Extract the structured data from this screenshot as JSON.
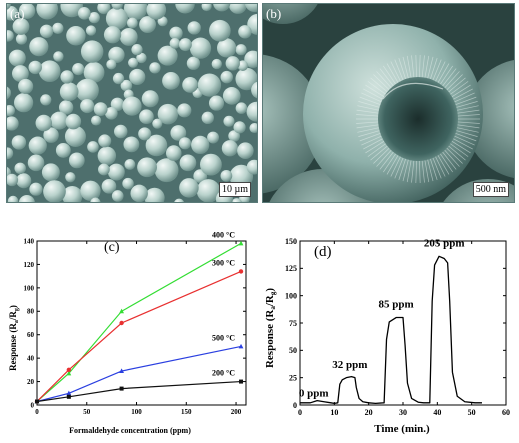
{
  "panel_a": {
    "label": "(a)",
    "scale_bar": "10 µm"
  },
  "panel_b": {
    "label": "(b)",
    "scale_bar": "500 nm"
  },
  "chart_data": [
    {
      "type": "line",
      "label": "(c)",
      "xlabel": "Formaldehyde concentration (ppm)",
      "ylabel": "Response (R_a/R_g)",
      "ylabel_main": "Response (R",
      "ylabel_sub1": "a",
      "ylabel_mid": "/R",
      "ylabel_sub2": "g",
      "ylabel_end": ")",
      "xlim": [
        0,
        210
      ],
      "ylim": [
        0,
        140
      ],
      "xticks": [
        0,
        50,
        100,
        150,
        200
      ],
      "yticks": [
        0,
        20,
        40,
        60,
        80,
        100,
        120,
        140
      ],
      "x": [
        0,
        32,
        85,
        205
      ],
      "series": [
        {
          "name": "400 °C",
          "color": "#33dd33",
          "marker": "triangle",
          "values": [
            3,
            27,
            80,
            138
          ]
        },
        {
          "name": "300 °C",
          "color": "#e83030",
          "marker": "circle",
          "values": [
            3,
            30,
            70,
            114
          ]
        },
        {
          "name": "500 °C",
          "color": "#2a3fe0",
          "marker": "triangle",
          "values": [
            3,
            10,
            29,
            50
          ]
        },
        {
          "name": "200 °C",
          "color": "#111111",
          "marker": "square",
          "values": [
            3,
            7,
            14,
            20
          ]
        }
      ]
    },
    {
      "type": "line",
      "label": "(d)",
      "xlabel": "Time (min.)",
      "ylabel": "Response (R_a/R_g)",
      "ylabel_main": "Response (R",
      "ylabel_sub1": "a",
      "ylabel_mid": "/R",
      "ylabel_sub2": "g",
      "ylabel_end": ")",
      "xlim": [
        0,
        60
      ],
      "ylim": [
        0,
        150
      ],
      "xticks": [
        0,
        10,
        20,
        30,
        40,
        50,
        60
      ],
      "yticks": [
        0,
        25,
        50,
        75,
        100,
        125,
        150
      ],
      "annotations": [
        {
          "text": "0 ppm",
          "x": 4,
          "y": 8
        },
        {
          "text": "32 ppm",
          "x": 14.5,
          "y": 34
        },
        {
          "text": "85 ppm",
          "x": 28,
          "y": 89
        },
        {
          "text": "205 ppm",
          "x": 42,
          "y": 145
        }
      ],
      "series": [
        {
          "color": "#000000",
          "x": [
            0,
            3,
            5,
            7,
            9,
            10,
            11,
            11.6,
            12.3,
            13.5,
            15,
            16,
            16.4,
            17.2,
            18.3,
            20,
            22,
            24.5,
            25.2,
            26,
            28,
            30,
            30.6,
            31.3,
            32.5,
            34.5,
            36,
            37.8,
            38.5,
            39.2,
            40.5,
            42,
            43,
            43.6,
            44.4,
            45.8,
            48,
            51,
            53
          ],
          "values": [
            2,
            2,
            4,
            3,
            2,
            1.5,
            2,
            19,
            23,
            25,
            26,
            25,
            16,
            6,
            3,
            2,
            1.5,
            2,
            60,
            76,
            80,
            80,
            55,
            20,
            6,
            2.5,
            2,
            2,
            95,
            128,
            136,
            134,
            130,
            95,
            30,
            8,
            3,
            2,
            2
          ]
        }
      ]
    }
  ]
}
